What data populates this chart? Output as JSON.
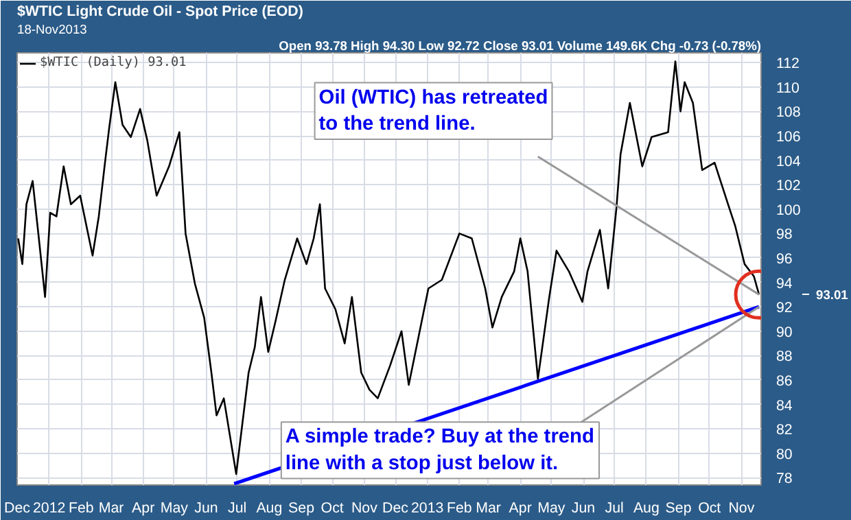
{
  "chart_data": {
    "type": "line",
    "title": "$WTIC Light Crude Oil - Spot Price (EOD)",
    "subtitle": "18-Nov2013",
    "xlim": [
      "2011-12-01",
      "2013-11-20"
    ],
    "ylim": [
      77.4,
      112.8
    ],
    "xticks": [
      {
        "value": "2011-12-01",
        "label": "Dec"
      },
      {
        "value": "2012-01-01",
        "label": "2012"
      },
      {
        "value": "2012-02-01",
        "label": "Feb"
      },
      {
        "value": "2012-03-01",
        "label": "Mar"
      },
      {
        "value": "2012-04-01",
        "label": "Apr"
      },
      {
        "value": "2012-05-01",
        "label": "May"
      },
      {
        "value": "2012-06-01",
        "label": "Jun"
      },
      {
        "value": "2012-07-01",
        "label": "Jul"
      },
      {
        "value": "2012-08-01",
        "label": "Aug"
      },
      {
        "value": "2012-09-01",
        "label": "Sep"
      },
      {
        "value": "2012-10-01",
        "label": "Oct"
      },
      {
        "value": "2012-11-01",
        "label": "Nov"
      },
      {
        "value": "2012-12-01",
        "label": "Dec"
      },
      {
        "value": "2013-01-01",
        "label": "2013"
      },
      {
        "value": "2013-02-01",
        "label": "Feb"
      },
      {
        "value": "2013-03-01",
        "label": "Mar"
      },
      {
        "value": "2013-04-01",
        "label": "Apr"
      },
      {
        "value": "2013-05-01",
        "label": "May"
      },
      {
        "value": "2013-06-01",
        "label": "Jun"
      },
      {
        "value": "2013-07-01",
        "label": "Jul"
      },
      {
        "value": "2013-08-01",
        "label": "Aug"
      },
      {
        "value": "2013-09-01",
        "label": "Sep"
      },
      {
        "value": "2013-10-01",
        "label": "Oct"
      },
      {
        "value": "2013-11-01",
        "label": "Nov"
      }
    ],
    "yticks": [
      78,
      80,
      82,
      84,
      86,
      88,
      90,
      92,
      94,
      96,
      98,
      100,
      102,
      104,
      106,
      108,
      110,
      112
    ],
    "grid": true,
    "legend": "top left",
    "marker": "none",
    "line_style": "solid",
    "series": [
      {
        "name": "$WTIC (Daily) 93.01",
        "color": "#000000",
        "x": [
          "2011-12-02",
          "2011-12-06",
          "2011-12-10",
          "2011-12-16",
          "2011-12-22",
          "2011-12-28",
          "2012-01-02",
          "2012-01-08",
          "2012-01-15",
          "2012-01-22",
          "2012-01-31",
          "2012-02-12",
          "2012-02-18",
          "2012-02-24",
          "2012-02-28",
          "2012-03-05",
          "2012-03-12",
          "2012-03-20",
          "2012-03-29",
          "2012-04-05",
          "2012-04-14",
          "2012-04-26",
          "2012-05-06",
          "2012-05-12",
          "2012-05-21",
          "2012-05-30",
          "2012-06-06",
          "2012-06-11",
          "2012-06-18",
          "2012-06-30",
          "2012-07-12",
          "2012-07-18",
          "2012-07-24",
          "2012-07-31",
          "2012-08-07",
          "2012-08-16",
          "2012-08-28",
          "2012-09-06",
          "2012-09-13",
          "2012-09-19",
          "2012-09-24",
          "2012-10-04",
          "2012-10-13",
          "2012-10-20",
          "2012-10-29",
          "2012-11-06",
          "2012-11-14",
          "2012-11-26",
          "2012-12-07",
          "2012-12-14",
          "2013-01-02",
          "2013-01-15",
          "2013-02-01",
          "2013-02-13",
          "2013-02-26",
          "2013-03-05",
          "2013-03-14",
          "2013-03-26",
          "2013-04-01",
          "2013-04-08",
          "2013-04-18",
          "2013-04-29",
          "2013-05-06",
          "2013-05-18",
          "2013-05-31",
          "2013-06-05",
          "2013-06-17",
          "2013-06-25",
          "2013-07-03",
          "2013-07-07",
          "2013-07-16",
          "2013-07-28",
          "2013-08-06",
          "2013-08-22",
          "2013-08-29",
          "2013-09-03",
          "2013-09-07",
          "2013-09-15",
          "2013-09-24",
          "2013-10-06",
          "2013-10-19",
          "2013-10-26",
          "2013-11-04",
          "2013-11-13",
          "2013-11-18"
        ],
        "values": [
          97.6,
          95.5,
          100.4,
          102.3,
          97.6,
          92.8,
          99.7,
          99.4,
          103.5,
          100.4,
          101.1,
          96.2,
          99.4,
          103.8,
          106.6,
          110.4,
          106.9,
          105.9,
          108.2,
          105.6,
          101.1,
          103.5,
          106.3,
          98.0,
          93.9,
          91.1,
          86.6,
          83.1,
          84.5,
          78.3,
          86.6,
          88.7,
          92.8,
          88.3,
          90.8,
          94.2,
          97.6,
          95.5,
          97.6,
          100.4,
          93.5,
          91.8,
          89.0,
          92.8,
          86.6,
          85.2,
          84.5,
          87.2,
          90.0,
          85.6,
          93.5,
          94.2,
          98.0,
          97.6,
          93.5,
          90.3,
          92.8,
          94.9,
          97.6,
          94.9,
          86.1,
          92.8,
          96.6,
          94.9,
          92.4,
          94.9,
          98.3,
          93.5,
          100.1,
          104.5,
          108.7,
          103.5,
          105.9,
          106.3,
          112.1,
          108.0,
          110.4,
          108.7,
          103.2,
          103.8,
          100.4,
          98.6,
          95.5,
          94.5,
          93.0
        ]
      },
      {
        "color": "#0000ff",
        "type": "line",
        "x": [
          "2012-06-28",
          "2013-11-18"
        ],
        "values": [
          77.5,
          92.0
        ]
      }
    ],
    "annotations": [
      "Open 93.78 High 94.30 Low 92.72 Close 93.01 Volume 149.6K Chg -0.73 (-0.78%)",
      "93.01",
      {
        "text": "Oil (WTIC) has retreated to the trend line.",
        "x": "2013-11-18",
        "y": 93.0
      },
      {
        "text": "A simple trade? Buy at the trend line with a stop just below it.",
        "x": "2013-11-18",
        "y": 92.0
      }
    ]
  }
}
